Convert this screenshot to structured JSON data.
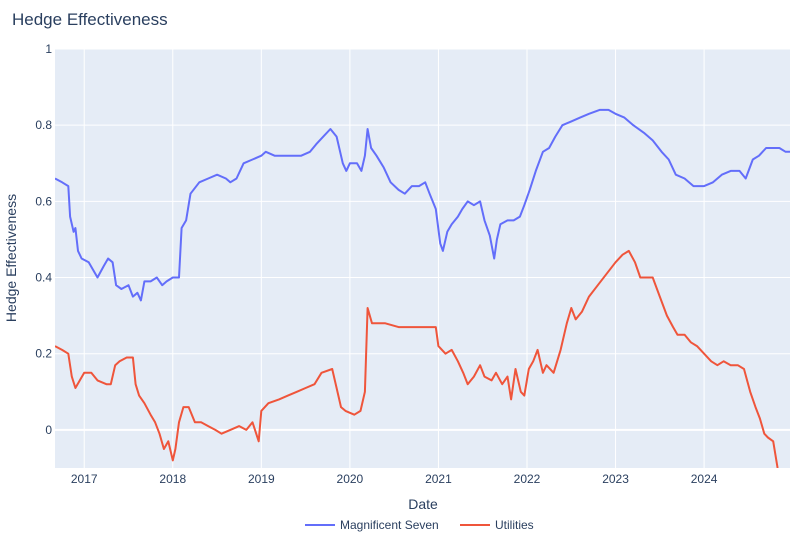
{
  "chart_data": {
    "type": "line",
    "title": "Hedge Effectiveness",
    "xlabel": "Date",
    "ylabel": "Hedge Effectiveness",
    "xlim": [
      2016.67,
      2024.97
    ],
    "ylim": [
      -0.1,
      1.0
    ],
    "x_ticks": [
      2017,
      2018,
      2019,
      2020,
      2021,
      2022,
      2023,
      2024
    ],
    "x_tick_labels": [
      "2017",
      "2018",
      "2019",
      "2020",
      "2021",
      "2022",
      "2023",
      "2024"
    ],
    "y_ticks": [
      0,
      0.2,
      0.4,
      0.6,
      0.8,
      1
    ],
    "y_tick_labels": [
      "0",
      "0.2",
      "0.4",
      "0.6",
      "0.8",
      "1"
    ],
    "grid": true,
    "legend_position": "bottom-center",
    "plot_bg": "#e5ecf6",
    "series": [
      {
        "name": "Magnificent Seven",
        "color": "#636efa",
        "points": [
          [
            2016.67,
            0.66
          ],
          [
            2016.75,
            0.65
          ],
          [
            2016.82,
            0.64
          ],
          [
            2016.84,
            0.56
          ],
          [
            2016.88,
            0.52
          ],
          [
            2016.9,
            0.53
          ],
          [
            2016.93,
            0.47
          ],
          [
            2016.97,
            0.45
          ],
          [
            2017.05,
            0.44
          ],
          [
            2017.1,
            0.42
          ],
          [
            2017.15,
            0.4
          ],
          [
            2017.22,
            0.43
          ],
          [
            2017.27,
            0.45
          ],
          [
            2017.32,
            0.44
          ],
          [
            2017.36,
            0.38
          ],
          [
            2017.42,
            0.37
          ],
          [
            2017.5,
            0.38
          ],
          [
            2017.55,
            0.35
          ],
          [
            2017.6,
            0.36
          ],
          [
            2017.64,
            0.34
          ],
          [
            2017.68,
            0.39
          ],
          [
            2017.75,
            0.39
          ],
          [
            2017.82,
            0.4
          ],
          [
            2017.88,
            0.38
          ],
          [
            2017.93,
            0.39
          ],
          [
            2018.0,
            0.4
          ],
          [
            2018.07,
            0.4
          ],
          [
            2018.1,
            0.53
          ],
          [
            2018.15,
            0.55
          ],
          [
            2018.2,
            0.62
          ],
          [
            2018.3,
            0.65
          ],
          [
            2018.4,
            0.66
          ],
          [
            2018.5,
            0.67
          ],
          [
            2018.6,
            0.66
          ],
          [
            2018.65,
            0.65
          ],
          [
            2018.72,
            0.66
          ],
          [
            2018.8,
            0.7
          ],
          [
            2018.9,
            0.71
          ],
          [
            2019.0,
            0.72
          ],
          [
            2019.05,
            0.73
          ],
          [
            2019.15,
            0.72
          ],
          [
            2019.3,
            0.72
          ],
          [
            2019.45,
            0.72
          ],
          [
            2019.55,
            0.73
          ],
          [
            2019.62,
            0.75
          ],
          [
            2019.7,
            0.77
          ],
          [
            2019.78,
            0.79
          ],
          [
            2019.85,
            0.77
          ],
          [
            2019.92,
            0.7
          ],
          [
            2019.96,
            0.68
          ],
          [
            2020.0,
            0.7
          ],
          [
            2020.08,
            0.7
          ],
          [
            2020.13,
            0.68
          ],
          [
            2020.17,
            0.72
          ],
          [
            2020.2,
            0.79
          ],
          [
            2020.24,
            0.74
          ],
          [
            2020.3,
            0.72
          ],
          [
            2020.38,
            0.69
          ],
          [
            2020.46,
            0.65
          ],
          [
            2020.55,
            0.63
          ],
          [
            2020.62,
            0.62
          ],
          [
            2020.7,
            0.64
          ],
          [
            2020.78,
            0.64
          ],
          [
            2020.85,
            0.65
          ],
          [
            2020.9,
            0.62
          ],
          [
            2020.97,
            0.58
          ],
          [
            2021.02,
            0.49
          ],
          [
            2021.05,
            0.47
          ],
          [
            2021.1,
            0.52
          ],
          [
            2021.15,
            0.54
          ],
          [
            2021.22,
            0.56
          ],
          [
            2021.27,
            0.58
          ],
          [
            2021.33,
            0.6
          ],
          [
            2021.4,
            0.59
          ],
          [
            2021.47,
            0.6
          ],
          [
            2021.52,
            0.55
          ],
          [
            2021.58,
            0.51
          ],
          [
            2021.63,
            0.45
          ],
          [
            2021.66,
            0.5
          ],
          [
            2021.7,
            0.54
          ],
          [
            2021.78,
            0.55
          ],
          [
            2021.85,
            0.55
          ],
          [
            2021.92,
            0.56
          ],
          [
            2021.97,
            0.59
          ],
          [
            2022.03,
            0.63
          ],
          [
            2022.1,
            0.68
          ],
          [
            2022.18,
            0.73
          ],
          [
            2022.25,
            0.74
          ],
          [
            2022.32,
            0.77
          ],
          [
            2022.4,
            0.8
          ],
          [
            2022.5,
            0.81
          ],
          [
            2022.6,
            0.82
          ],
          [
            2022.7,
            0.83
          ],
          [
            2022.82,
            0.84
          ],
          [
            2022.92,
            0.84
          ],
          [
            2023.0,
            0.83
          ],
          [
            2023.1,
            0.82
          ],
          [
            2023.2,
            0.8
          ],
          [
            2023.32,
            0.78
          ],
          [
            2023.42,
            0.76
          ],
          [
            2023.52,
            0.73
          ],
          [
            2023.6,
            0.71
          ],
          [
            2023.68,
            0.67
          ],
          [
            2023.78,
            0.66
          ],
          [
            2023.88,
            0.64
          ],
          [
            2024.0,
            0.64
          ],
          [
            2024.1,
            0.65
          ],
          [
            2024.2,
            0.67
          ],
          [
            2024.3,
            0.68
          ],
          [
            2024.4,
            0.68
          ],
          [
            2024.47,
            0.66
          ],
          [
            2024.55,
            0.71
          ],
          [
            2024.62,
            0.72
          ],
          [
            2024.7,
            0.74
          ],
          [
            2024.78,
            0.74
          ],
          [
            2024.85,
            0.74
          ],
          [
            2024.92,
            0.73
          ],
          [
            2024.97,
            0.73
          ]
        ]
      },
      {
        "name": "Utilities",
        "color": "#ef553b",
        "points": [
          [
            2016.67,
            0.22
          ],
          [
            2016.75,
            0.21
          ],
          [
            2016.82,
            0.2
          ],
          [
            2016.86,
            0.14
          ],
          [
            2016.9,
            0.11
          ],
          [
            2016.95,
            0.13
          ],
          [
            2017.0,
            0.15
          ],
          [
            2017.08,
            0.15
          ],
          [
            2017.15,
            0.13
          ],
          [
            2017.25,
            0.12
          ],
          [
            2017.3,
            0.12
          ],
          [
            2017.35,
            0.17
          ],
          [
            2017.4,
            0.18
          ],
          [
            2017.48,
            0.19
          ],
          [
            2017.55,
            0.19
          ],
          [
            2017.58,
            0.12
          ],
          [
            2017.62,
            0.09
          ],
          [
            2017.68,
            0.07
          ],
          [
            2017.75,
            0.04
          ],
          [
            2017.8,
            0.02
          ],
          [
            2017.85,
            -0.01
          ],
          [
            2017.9,
            -0.05
          ],
          [
            2017.95,
            -0.03
          ],
          [
            2018.0,
            -0.08
          ],
          [
            2018.03,
            -0.05
          ],
          [
            2018.07,
            0.02
          ],
          [
            2018.12,
            0.06
          ],
          [
            2018.18,
            0.06
          ],
          [
            2018.25,
            0.02
          ],
          [
            2018.32,
            0.02
          ],
          [
            2018.4,
            0.01
          ],
          [
            2018.48,
            0.0
          ],
          [
            2018.55,
            -0.01
          ],
          [
            2018.65,
            0.0
          ],
          [
            2018.75,
            0.01
          ],
          [
            2018.83,
            0.0
          ],
          [
            2018.9,
            0.02
          ],
          [
            2018.97,
            -0.03
          ],
          [
            2019.0,
            0.05
          ],
          [
            2019.08,
            0.07
          ],
          [
            2019.2,
            0.08
          ],
          [
            2019.3,
            0.09
          ],
          [
            2019.4,
            0.1
          ],
          [
            2019.5,
            0.11
          ],
          [
            2019.6,
            0.12
          ],
          [
            2019.68,
            0.15
          ],
          [
            2019.8,
            0.16
          ],
          [
            2019.85,
            0.11
          ],
          [
            2019.9,
            0.06
          ],
          [
            2019.95,
            0.05
          ],
          [
            2020.05,
            0.04
          ],
          [
            2020.12,
            0.05
          ],
          [
            2020.17,
            0.1
          ],
          [
            2020.2,
            0.32
          ],
          [
            2020.25,
            0.28
          ],
          [
            2020.4,
            0.28
          ],
          [
            2020.55,
            0.27
          ],
          [
            2020.7,
            0.27
          ],
          [
            2020.85,
            0.27
          ],
          [
            2020.97,
            0.27
          ],
          [
            2021.0,
            0.22
          ],
          [
            2021.08,
            0.2
          ],
          [
            2021.15,
            0.21
          ],
          [
            2021.22,
            0.18
          ],
          [
            2021.28,
            0.15
          ],
          [
            2021.33,
            0.12
          ],
          [
            2021.4,
            0.14
          ],
          [
            2021.47,
            0.17
          ],
          [
            2021.52,
            0.14
          ],
          [
            2021.6,
            0.13
          ],
          [
            2021.65,
            0.15
          ],
          [
            2021.72,
            0.12
          ],
          [
            2021.78,
            0.14
          ],
          [
            2021.82,
            0.08
          ],
          [
            2021.87,
            0.16
          ],
          [
            2021.93,
            0.1
          ],
          [
            2021.97,
            0.09
          ],
          [
            2022.02,
            0.16
          ],
          [
            2022.07,
            0.18
          ],
          [
            2022.12,
            0.21
          ],
          [
            2022.18,
            0.15
          ],
          [
            2022.22,
            0.17
          ],
          [
            2022.3,
            0.15
          ],
          [
            2022.38,
            0.21
          ],
          [
            2022.45,
            0.28
          ],
          [
            2022.5,
            0.32
          ],
          [
            2022.55,
            0.29
          ],
          [
            2022.62,
            0.31
          ],
          [
            2022.7,
            0.35
          ],
          [
            2022.8,
            0.38
          ],
          [
            2022.9,
            0.41
          ],
          [
            2023.0,
            0.44
          ],
          [
            2023.08,
            0.46
          ],
          [
            2023.15,
            0.47
          ],
          [
            2023.22,
            0.44
          ],
          [
            2023.28,
            0.4
          ],
          [
            2023.35,
            0.4
          ],
          [
            2023.42,
            0.4
          ],
          [
            2023.5,
            0.35
          ],
          [
            2023.58,
            0.3
          ],
          [
            2023.65,
            0.27
          ],
          [
            2023.7,
            0.25
          ],
          [
            2023.78,
            0.25
          ],
          [
            2023.85,
            0.23
          ],
          [
            2023.92,
            0.22
          ],
          [
            2024.0,
            0.2
          ],
          [
            2024.08,
            0.18
          ],
          [
            2024.15,
            0.17
          ],
          [
            2024.22,
            0.18
          ],
          [
            2024.3,
            0.17
          ],
          [
            2024.38,
            0.17
          ],
          [
            2024.45,
            0.16
          ],
          [
            2024.52,
            0.1
          ],
          [
            2024.58,
            0.06
          ],
          [
            2024.63,
            0.03
          ],
          [
            2024.68,
            -0.01
          ],
          [
            2024.72,
            -0.02
          ],
          [
            2024.78,
            -0.03
          ],
          [
            2024.83,
            -0.1
          ]
        ]
      }
    ]
  }
}
